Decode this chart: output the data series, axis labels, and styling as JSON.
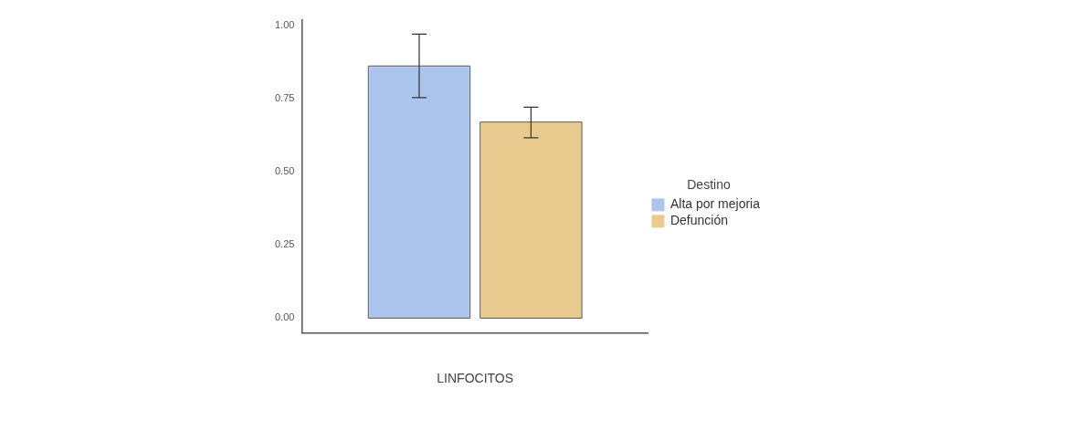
{
  "chart_data": {
    "type": "bar",
    "categories": [
      null
    ],
    "xlabel": "LINFOCITOS",
    "legend_title": "Destino",
    "legend": "right",
    "series": [
      {
        "name": "Alta por mejoria",
        "color": "#aac4ec",
        "values": [
          0.863
        ],
        "errors": [
          [
            0.755,
            0.972
          ]
        ]
      },
      {
        "name": "Defunción",
        "color": "#eacb8f",
        "values": [
          0.671
        ],
        "errors": [
          [
            0.617,
            0.722
          ]
        ]
      }
    ],
    "ylim": [
      -0.05,
      1.02
    ],
    "yticks": [
      {
        "value": 0,
        "label": "0.00"
      },
      {
        "value": 0.25,
        "label": "0.25"
      },
      {
        "value": 0.5,
        "label": "0.50"
      },
      {
        "value": 0.75,
        "label": "0.75"
      },
      {
        "value": 1,
        "label": "1.00"
      }
    ],
    "grid": false
  }
}
